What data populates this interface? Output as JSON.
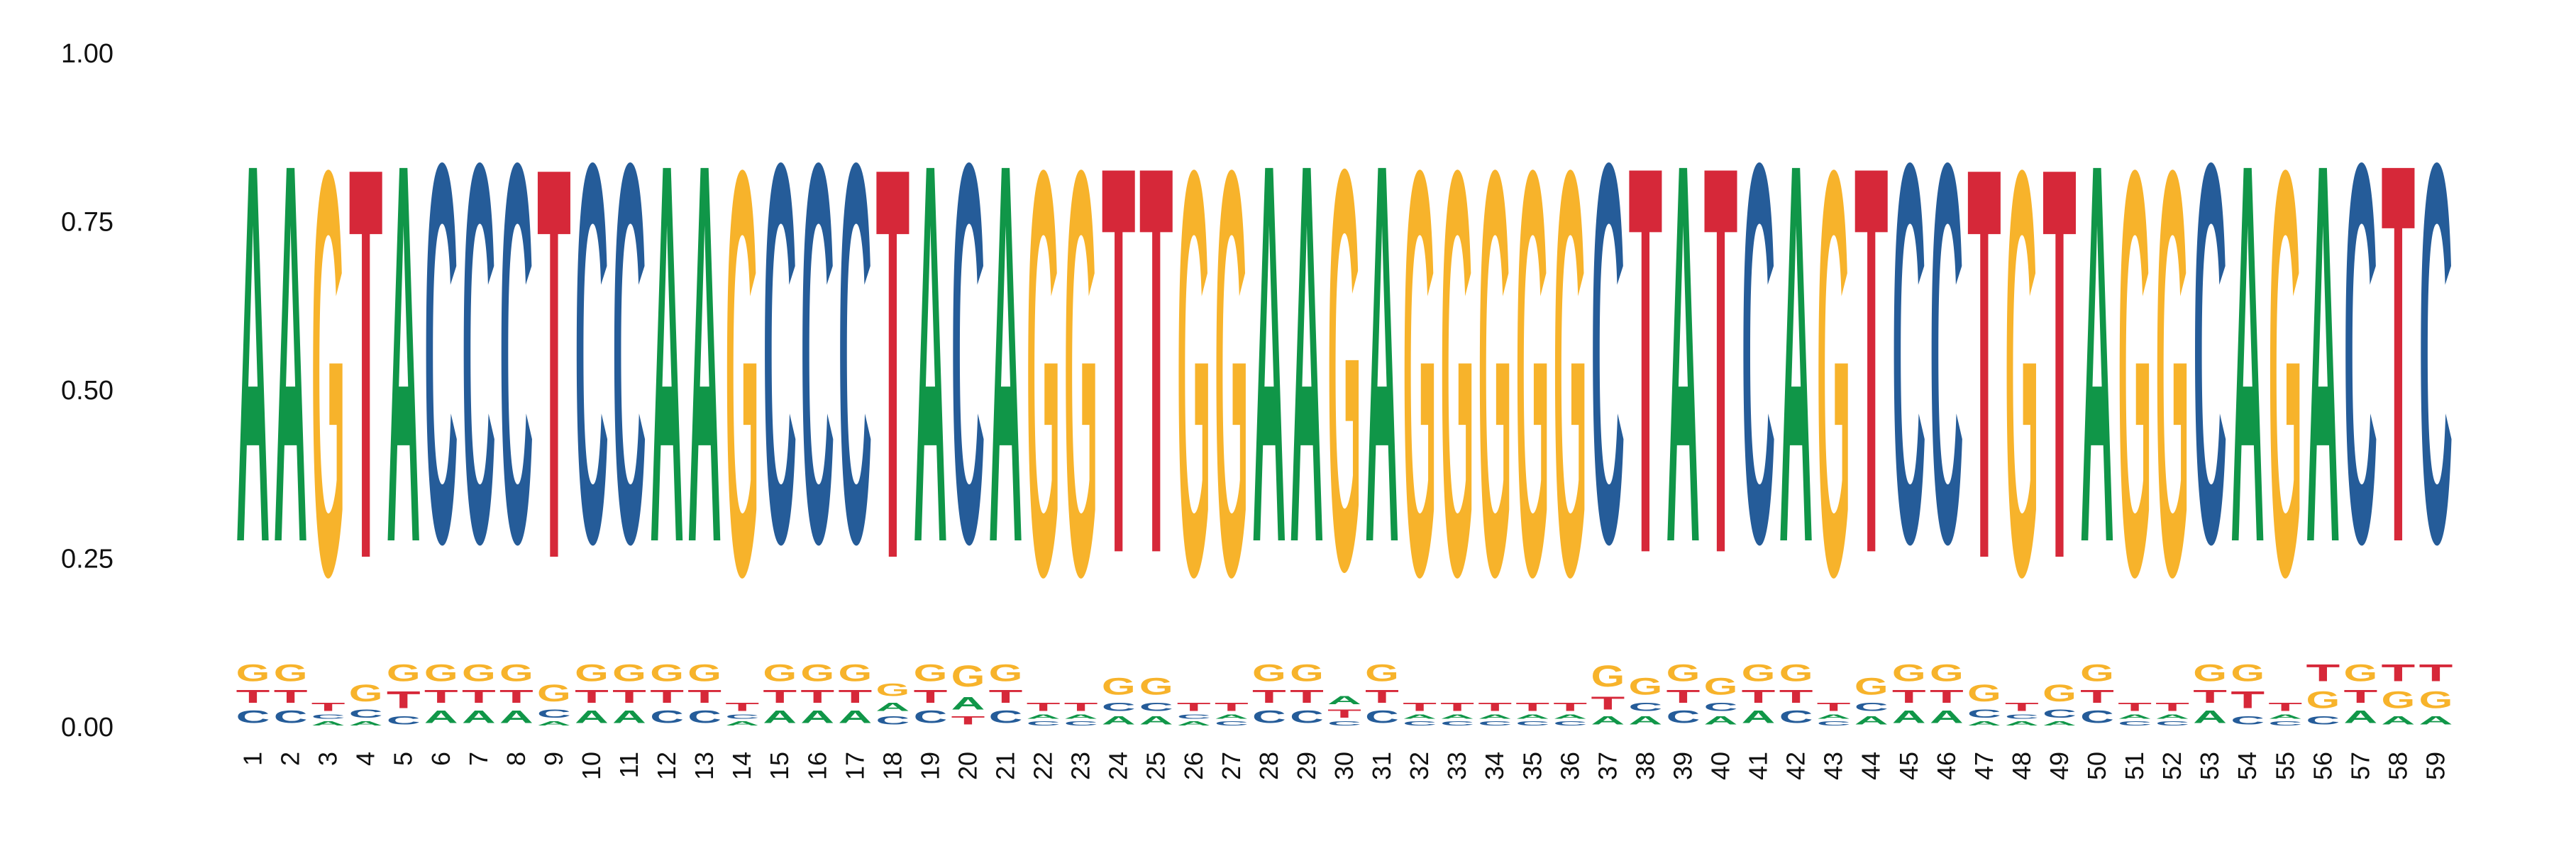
{
  "chart_data": {
    "type": "sequence-logo",
    "title": "",
    "xlabel": "",
    "ylabel": "",
    "ylim": [
      0,
      1
    ],
    "yticks": [
      0.0,
      0.25,
      0.5,
      0.75,
      1.0
    ],
    "ytick_labels": [
      "0.00",
      "0.25",
      "0.50",
      "0.75",
      "1.00"
    ],
    "positions": [
      1,
      2,
      3,
      4,
      5,
      6,
      7,
      8,
      9,
      10,
      11,
      12,
      13,
      14,
      15,
      16,
      17,
      18,
      19,
      20,
      21,
      22,
      23,
      24,
      25,
      26,
      27,
      28,
      29,
      30,
      31,
      32,
      33,
      34,
      35,
      36,
      37,
      38,
      39,
      40,
      41,
      42,
      43,
      44,
      45,
      46,
      47,
      48,
      49,
      50,
      51,
      52,
      53,
      54,
      55,
      56,
      57,
      58,
      59
    ],
    "position_labels": [
      "1",
      "2",
      "3",
      "4",
      "5",
      "6",
      "7",
      "8",
      "9",
      "10",
      "11",
      "12",
      "13",
      "14",
      "15",
      "16",
      "17",
      "18",
      "19",
      "20",
      "21",
      "22",
      "23",
      "24",
      "25",
      "26",
      "27",
      "28",
      "29",
      "30",
      "31",
      "32",
      "33",
      "34",
      "35",
      "36",
      "37",
      "38",
      "39",
      "40",
      "41",
      "42",
      "43",
      "44",
      "45",
      "46",
      "47",
      "48",
      "49",
      "50",
      "51",
      "52",
      "53",
      "54",
      "55",
      "56",
      "57",
      "58",
      "59"
    ],
    "colors": {
      "A": "#109648",
      "C": "#255c99",
      "G": "#f7b32b",
      "T": "#d62839"
    },
    "stacks": [
      {
        "pos": 1,
        "stack": [
          [
            "C",
            0.03
          ],
          [
            "T",
            0.03
          ],
          [
            "G",
            0.04
          ],
          [
            "A",
            0.9
          ]
        ]
      },
      {
        "pos": 2,
        "stack": [
          [
            "C",
            0.03
          ],
          [
            "T",
            0.03
          ],
          [
            "G",
            0.04
          ],
          [
            "A",
            0.9
          ]
        ]
      },
      {
        "pos": 3,
        "stack": [
          [
            "A",
            0.01
          ],
          [
            "C",
            0.01
          ],
          [
            "T",
            0.02
          ],
          [
            "G",
            0.96
          ]
        ]
      },
      {
        "pos": 4,
        "stack": [
          [
            "A",
            0.01
          ],
          [
            "C",
            0.02
          ],
          [
            "G",
            0.04
          ],
          [
            "T",
            0.93
          ]
        ]
      },
      {
        "pos": 5,
        "stack": [
          [
            "C",
            0.02
          ],
          [
            "T",
            0.04
          ],
          [
            "G",
            0.04
          ],
          [
            "A",
            0.9
          ]
        ]
      },
      {
        "pos": 6,
        "stack": [
          [
            "A",
            0.03
          ],
          [
            "T",
            0.03
          ],
          [
            "G",
            0.04
          ],
          [
            "C",
            0.9
          ]
        ]
      },
      {
        "pos": 7,
        "stack": [
          [
            "A",
            0.03
          ],
          [
            "T",
            0.03
          ],
          [
            "G",
            0.04
          ],
          [
            "C",
            0.9
          ]
        ]
      },
      {
        "pos": 8,
        "stack": [
          [
            "A",
            0.03
          ],
          [
            "T",
            0.03
          ],
          [
            "G",
            0.04
          ],
          [
            "C",
            0.9
          ]
        ]
      },
      {
        "pos": 9,
        "stack": [
          [
            "A",
            0.01
          ],
          [
            "C",
            0.02
          ],
          [
            "G",
            0.04
          ],
          [
            "T",
            0.93
          ]
        ]
      },
      {
        "pos": 10,
        "stack": [
          [
            "A",
            0.03
          ],
          [
            "T",
            0.03
          ],
          [
            "G",
            0.04
          ],
          [
            "C",
            0.9
          ]
        ]
      },
      {
        "pos": 11,
        "stack": [
          [
            "A",
            0.03
          ],
          [
            "T",
            0.03
          ],
          [
            "G",
            0.04
          ],
          [
            "C",
            0.9
          ]
        ]
      },
      {
        "pos": 12,
        "stack": [
          [
            "C",
            0.03
          ],
          [
            "T",
            0.03
          ],
          [
            "G",
            0.04
          ],
          [
            "A",
            0.9
          ]
        ]
      },
      {
        "pos": 13,
        "stack": [
          [
            "C",
            0.03
          ],
          [
            "T",
            0.03
          ],
          [
            "G",
            0.04
          ],
          [
            "A",
            0.9
          ]
        ]
      },
      {
        "pos": 14,
        "stack": [
          [
            "A",
            0.01
          ],
          [
            "C",
            0.01
          ],
          [
            "T",
            0.02
          ],
          [
            "G",
            0.96
          ]
        ]
      },
      {
        "pos": 15,
        "stack": [
          [
            "A",
            0.03
          ],
          [
            "T",
            0.03
          ],
          [
            "G",
            0.04
          ],
          [
            "C",
            0.9
          ]
        ]
      },
      {
        "pos": 16,
        "stack": [
          [
            "A",
            0.03
          ],
          [
            "T",
            0.03
          ],
          [
            "G",
            0.04
          ],
          [
            "C",
            0.9
          ]
        ]
      },
      {
        "pos": 17,
        "stack": [
          [
            "A",
            0.03
          ],
          [
            "T",
            0.03
          ],
          [
            "G",
            0.04
          ],
          [
            "C",
            0.9
          ]
        ]
      },
      {
        "pos": 18,
        "stack": [
          [
            "C",
            0.02
          ],
          [
            "A",
            0.02
          ],
          [
            "G",
            0.03
          ],
          [
            "T",
            0.93
          ]
        ]
      },
      {
        "pos": 19,
        "stack": [
          [
            "C",
            0.03
          ],
          [
            "T",
            0.03
          ],
          [
            "G",
            0.04
          ],
          [
            "A",
            0.9
          ]
        ]
      },
      {
        "pos": 20,
        "stack": [
          [
            "T",
            0.02
          ],
          [
            "A",
            0.03
          ],
          [
            "G",
            0.05
          ],
          [
            "C",
            0.9
          ]
        ]
      },
      {
        "pos": 21,
        "stack": [
          [
            "C",
            0.03
          ],
          [
            "T",
            0.03
          ],
          [
            "G",
            0.04
          ],
          [
            "A",
            0.9
          ]
        ]
      },
      {
        "pos": 22,
        "stack": [
          [
            "C",
            0.01
          ],
          [
            "A",
            0.01
          ],
          [
            "T",
            0.02
          ],
          [
            "G",
            0.96
          ]
        ]
      },
      {
        "pos": 23,
        "stack": [
          [
            "C",
            0.01
          ],
          [
            "A",
            0.01
          ],
          [
            "T",
            0.02
          ],
          [
            "G",
            0.96
          ]
        ]
      },
      {
        "pos": 24,
        "stack": [
          [
            "A",
            0.02
          ],
          [
            "C",
            0.02
          ],
          [
            "G",
            0.04
          ],
          [
            "T",
            0.92
          ]
        ]
      },
      {
        "pos": 25,
        "stack": [
          [
            "A",
            0.02
          ],
          [
            "C",
            0.02
          ],
          [
            "G",
            0.04
          ],
          [
            "T",
            0.92
          ]
        ]
      },
      {
        "pos": 26,
        "stack": [
          [
            "A",
            0.01
          ],
          [
            "C",
            0.01
          ],
          [
            "T",
            0.02
          ],
          [
            "G",
            0.96
          ]
        ]
      },
      {
        "pos": 27,
        "stack": [
          [
            "C",
            0.01
          ],
          [
            "A",
            0.01
          ],
          [
            "T",
            0.02
          ],
          [
            "G",
            0.96
          ]
        ]
      },
      {
        "pos": 28,
        "stack": [
          [
            "C",
            0.03
          ],
          [
            "T",
            0.03
          ],
          [
            "G",
            0.04
          ],
          [
            "A",
            0.9
          ]
        ]
      },
      {
        "pos": 29,
        "stack": [
          [
            "C",
            0.03
          ],
          [
            "T",
            0.03
          ],
          [
            "G",
            0.04
          ],
          [
            "A",
            0.9
          ]
        ]
      },
      {
        "pos": 30,
        "stack": [
          [
            "C",
            0.01
          ],
          [
            "T",
            0.02
          ],
          [
            "A",
            0.02
          ],
          [
            "G",
            0.95
          ]
        ]
      },
      {
        "pos": 31,
        "stack": [
          [
            "C",
            0.03
          ],
          [
            "T",
            0.03
          ],
          [
            "G",
            0.04
          ],
          [
            "A",
            0.9
          ]
        ]
      },
      {
        "pos": 32,
        "stack": [
          [
            "C",
            0.01
          ],
          [
            "A",
            0.01
          ],
          [
            "T",
            0.02
          ],
          [
            "G",
            0.96
          ]
        ]
      },
      {
        "pos": 33,
        "stack": [
          [
            "C",
            0.01
          ],
          [
            "A",
            0.01
          ],
          [
            "T",
            0.02
          ],
          [
            "G",
            0.96
          ]
        ]
      },
      {
        "pos": 34,
        "stack": [
          [
            "C",
            0.01
          ],
          [
            "A",
            0.01
          ],
          [
            "T",
            0.02
          ],
          [
            "G",
            0.96
          ]
        ]
      },
      {
        "pos": 35,
        "stack": [
          [
            "C",
            0.01
          ],
          [
            "A",
            0.01
          ],
          [
            "T",
            0.02
          ],
          [
            "G",
            0.96
          ]
        ]
      },
      {
        "pos": 36,
        "stack": [
          [
            "C",
            0.01
          ],
          [
            "A",
            0.01
          ],
          [
            "T",
            0.02
          ],
          [
            "G",
            0.96
          ]
        ]
      },
      {
        "pos": 37,
        "stack": [
          [
            "A",
            0.02
          ],
          [
            "T",
            0.03
          ],
          [
            "G",
            0.05
          ],
          [
            "C",
            0.9
          ]
        ]
      },
      {
        "pos": 38,
        "stack": [
          [
            "A",
            0.02
          ],
          [
            "C",
            0.02
          ],
          [
            "G",
            0.04
          ],
          [
            "T",
            0.92
          ]
        ]
      },
      {
        "pos": 39,
        "stack": [
          [
            "C",
            0.03
          ],
          [
            "T",
            0.03
          ],
          [
            "G",
            0.04
          ],
          [
            "A",
            0.9
          ]
        ]
      },
      {
        "pos": 40,
        "stack": [
          [
            "A",
            0.02
          ],
          [
            "C",
            0.02
          ],
          [
            "G",
            0.04
          ],
          [
            "T",
            0.92
          ]
        ]
      },
      {
        "pos": 41,
        "stack": [
          [
            "A",
            0.03
          ],
          [
            "T",
            0.03
          ],
          [
            "G",
            0.04
          ],
          [
            "C",
            0.9
          ]
        ]
      },
      {
        "pos": 42,
        "stack": [
          [
            "C",
            0.03
          ],
          [
            "T",
            0.03
          ],
          [
            "G",
            0.04
          ],
          [
            "A",
            0.9
          ]
        ]
      },
      {
        "pos": 43,
        "stack": [
          [
            "C",
            0.01
          ],
          [
            "A",
            0.01
          ],
          [
            "T",
            0.02
          ],
          [
            "G",
            0.96
          ]
        ]
      },
      {
        "pos": 44,
        "stack": [
          [
            "A",
            0.02
          ],
          [
            "C",
            0.02
          ],
          [
            "G",
            0.04
          ],
          [
            "T",
            0.92
          ]
        ]
      },
      {
        "pos": 45,
        "stack": [
          [
            "A",
            0.03
          ],
          [
            "T",
            0.03
          ],
          [
            "G",
            0.04
          ],
          [
            "C",
            0.9
          ]
        ]
      },
      {
        "pos": 46,
        "stack": [
          [
            "A",
            0.03
          ],
          [
            "T",
            0.03
          ],
          [
            "G",
            0.04
          ],
          [
            "C",
            0.9
          ]
        ]
      },
      {
        "pos": 47,
        "stack": [
          [
            "A",
            0.01
          ],
          [
            "C",
            0.02
          ],
          [
            "G",
            0.04
          ],
          [
            "T",
            0.93
          ]
        ]
      },
      {
        "pos": 48,
        "stack": [
          [
            "A",
            0.01
          ],
          [
            "C",
            0.01
          ],
          [
            "T",
            0.02
          ],
          [
            "G",
            0.96
          ]
        ]
      },
      {
        "pos": 49,
        "stack": [
          [
            "A",
            0.01
          ],
          [
            "C",
            0.02
          ],
          [
            "G",
            0.04
          ],
          [
            "T",
            0.93
          ]
        ]
      },
      {
        "pos": 50,
        "stack": [
          [
            "C",
            0.03
          ],
          [
            "T",
            0.03
          ],
          [
            "G",
            0.04
          ],
          [
            "A",
            0.9
          ]
        ]
      },
      {
        "pos": 51,
        "stack": [
          [
            "C",
            0.01
          ],
          [
            "A",
            0.01
          ],
          [
            "T",
            0.02
          ],
          [
            "G",
            0.96
          ]
        ]
      },
      {
        "pos": 52,
        "stack": [
          [
            "C",
            0.01
          ],
          [
            "A",
            0.01
          ],
          [
            "T",
            0.02
          ],
          [
            "G",
            0.96
          ]
        ]
      },
      {
        "pos": 53,
        "stack": [
          [
            "A",
            0.03
          ],
          [
            "T",
            0.03
          ],
          [
            "G",
            0.04
          ],
          [
            "C",
            0.9
          ]
        ]
      },
      {
        "pos": 54,
        "stack": [
          [
            "C",
            0.02
          ],
          [
            "T",
            0.04
          ],
          [
            "G",
            0.04
          ],
          [
            "A",
            0.9
          ]
        ]
      },
      {
        "pos": 55,
        "stack": [
          [
            "C",
            0.01
          ],
          [
            "A",
            0.01
          ],
          [
            "T",
            0.02
          ],
          [
            "G",
            0.96
          ]
        ]
      },
      {
        "pos": 56,
        "stack": [
          [
            "C",
            0.02
          ],
          [
            "G",
            0.04
          ],
          [
            "T",
            0.04
          ],
          [
            "A",
            0.9
          ]
        ]
      },
      {
        "pos": 57,
        "stack": [
          [
            "A",
            0.03
          ],
          [
            "T",
            0.03
          ],
          [
            "G",
            0.04
          ],
          [
            "C",
            0.9
          ]
        ]
      },
      {
        "pos": 58,
        "stack": [
          [
            "A",
            0.02
          ],
          [
            "G",
            0.04
          ],
          [
            "T",
            0.04
          ],
          [
            "G",
            0.0
          ],
          [
            "T",
            0.9
          ]
        ]
      },
      {
        "pos": 59,
        "stack": [
          [
            "A",
            0.02
          ],
          [
            "G",
            0.04
          ],
          [
            "T",
            0.04
          ],
          [
            "C",
            0.9
          ]
        ]
      }
    ]
  }
}
